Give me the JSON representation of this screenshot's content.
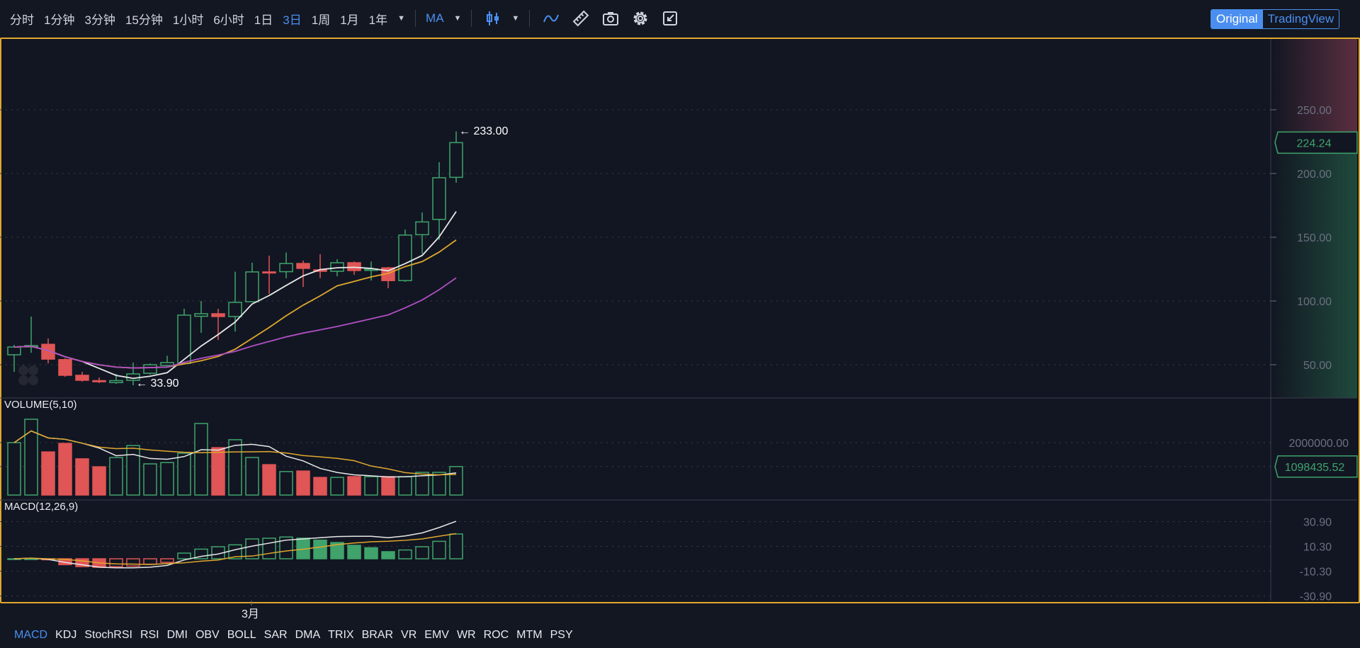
{
  "toolbar": {
    "intervals": [
      "分时",
      "1分钟",
      "3分钟",
      "15分钟",
      "1小时",
      "6小时",
      "1日",
      "3日",
      "1周",
      "1月",
      "1年"
    ],
    "active_interval": "3日",
    "indicator_select": "MA",
    "icons": [
      "candlestick-icon",
      "line-indicator-icon",
      "ruler-icon",
      "camera-icon",
      "gear-icon",
      "shrink-icon"
    ],
    "view_modes": [
      "Original",
      "TradingView"
    ],
    "active_view": "Original"
  },
  "colors": {
    "up": "#3fa36b",
    "down": "#e05555",
    "ma5": "#e8e8e8",
    "ma10": "#e0a82e",
    "ma20": "#b04fc4",
    "accent": "#4a8ff0",
    "border": "#e0a82e"
  },
  "price_panel": {
    "axis_ticks": [
      "250.00",
      "200.00",
      "150.00",
      "100.00",
      "50.00"
    ],
    "current_price": "224.24",
    "high_marker": "← 233.00",
    "low_marker": "← 33.90"
  },
  "volume_panel": {
    "title": "VOLUME(5,10)",
    "axis_ticks": [
      "2000000.00"
    ],
    "current_value": "1098435.52"
  },
  "macd_panel": {
    "title": "MACD(12,26,9)",
    "axis_ticks": [
      "30.90",
      "10.30",
      "-10.30",
      "-30.90"
    ]
  },
  "x_axis": {
    "label": "3月"
  },
  "indicator_tabs": [
    "MACD",
    "KDJ",
    "StochRSI",
    "RSI",
    "DMI",
    "OBV",
    "BOLL",
    "SAR",
    "DMA",
    "TRIX",
    "BRAR",
    "VR",
    "EMV",
    "WR",
    "ROC",
    "MTM",
    "PSY"
  ],
  "active_indicator": "MACD",
  "chart_data": {
    "type": "candlestick",
    "ma_periods": [
      5,
      10,
      20
    ],
    "ohlc": [
      [
        57.8,
        65.6,
        44.4,
        63.9
      ],
      [
        64,
        87.8,
        59.4,
        65
      ],
      [
        66,
        70.6,
        51,
        54.4
      ],
      [
        54,
        55,
        40.5,
        41.7
      ],
      [
        41.7,
        44.4,
        36.7,
        37.8
      ],
      [
        37.5,
        40,
        35.6,
        36.7
      ],
      [
        36,
        42.8,
        35,
        37.5
      ],
      [
        37.8,
        51.7,
        33.9,
        42.8
      ],
      [
        43.3,
        51,
        42.2,
        50
      ],
      [
        49.4,
        57,
        48.9,
        51.7
      ],
      [
        51,
        93.9,
        50,
        88.9
      ],
      [
        88,
        100,
        75,
        90
      ],
      [
        90,
        93.9,
        69.4,
        87.8
      ],
      [
        87.8,
        123,
        76,
        98.9
      ],
      [
        99.4,
        130,
        99,
        122.8
      ],
      [
        122.8,
        135.6,
        105.6,
        122
      ],
      [
        123,
        138,
        117.8,
        129.4
      ],
      [
        129.4,
        131.7,
        111,
        125.6
      ],
      [
        124.4,
        136.7,
        118,
        123.3
      ],
      [
        123.3,
        132.8,
        119.4,
        130
      ],
      [
        130,
        131,
        120.6,
        123.9
      ],
      [
        124,
        131,
        116,
        125
      ],
      [
        126,
        126.7,
        110,
        116
      ],
      [
        116,
        156,
        115,
        151.7
      ],
      [
        152,
        169.4,
        137,
        162
      ],
      [
        164,
        208.9,
        148,
        196.7
      ],
      [
        197,
        233,
        192.8,
        224.24
      ]
    ],
    "volume": [
      2000000,
      2880000,
      1650000,
      1970000,
      1390000,
      1090000,
      1440000,
      1890000,
      1200000,
      1250000,
      1600000,
      2720000,
      1810000,
      2110000,
      1440000,
      1170000,
      910000,
      930000,
      690000,
      690000,
      720000,
      720000,
      720000,
      720000,
      880000,
      880000,
      1098435.52
    ],
    "macd_hist": [
      0,
      0,
      -0.8,
      -4.9,
      -6.5,
      -7.1,
      -6.5,
      -6.1,
      -4.5,
      -3.0,
      4.7,
      8.0,
      10.0,
      11.6,
      16.5,
      17.1,
      18.1,
      17.1,
      15.5,
      13.5,
      11.2,
      9.2,
      5.9,
      7.3,
      10.0,
      14.5,
      20.6
    ],
    "macd_dif": [
      0,
      0.5,
      -0.5,
      -3,
      -5,
      -7,
      -7.5,
      -7.5,
      -7,
      -5.5,
      -1,
      2,
      4,
      7.5,
      10.5,
      13,
      15.5,
      16.5,
      17.5,
      18.5,
      18.7,
      18.7,
      17.5,
      19,
      21.5,
      26,
      31.2
    ],
    "macd_dea": [
      0,
      0.5,
      -0.1,
      -0.55,
      -1.75,
      -3.45,
      -4.25,
      -4.45,
      -4.75,
      -4,
      -3.35,
      -2,
      -1,
      1.7,
      2.25,
      4.45,
      6.45,
      7.95,
      9.75,
      11.75,
      13.1,
      14.1,
      14.55,
      15.35,
      16.5,
      18.75,
      20.9
    ],
    "price_ylim": [
      30,
      275
    ],
    "macd_ylim": [
      -30.9,
      30.9
    ]
  }
}
